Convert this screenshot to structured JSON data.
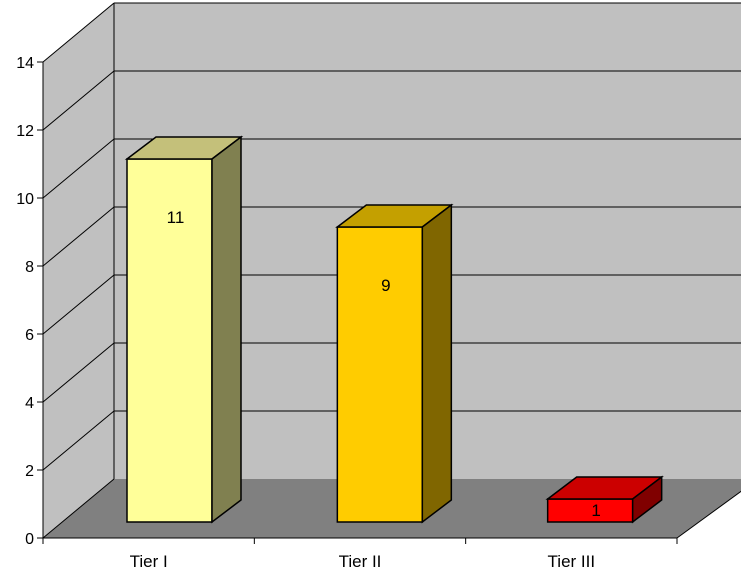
{
  "chart_data": {
    "type": "bar",
    "categories": [
      "Tier I",
      "Tier II",
      "Tier III"
    ],
    "values": [
      11,
      9,
      1
    ],
    "data_labels": [
      "11",
      "9",
      "1"
    ],
    "ylim": [
      0,
      14
    ],
    "yticks": [
      "0",
      "2",
      "4",
      "6",
      "8",
      "10",
      "12",
      "14"
    ],
    "grid": true,
    "legend": "none",
    "colors": {
      "wall": "#c0c0c0",
      "floor": "#808080",
      "bars": [
        {
          "front": "#ffff99",
          "top": "#c4c07a",
          "side": "#808050"
        },
        {
          "front": "#ffcc00",
          "top": "#c4a000",
          "side": "#806600"
        },
        {
          "front": "#ff0000",
          "top": "#cc0000",
          "side": "#800000"
        }
      ]
    }
  }
}
